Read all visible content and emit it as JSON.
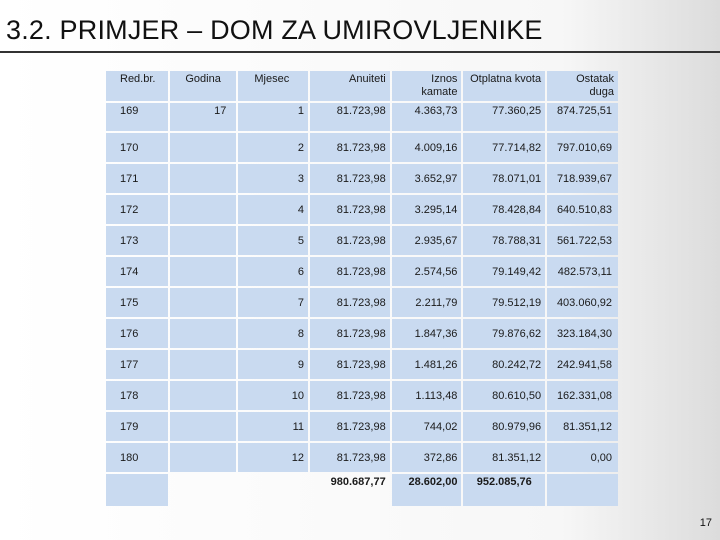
{
  "slide": {
    "title": "3.2. PRIMJER – DOM ZA UMIROVLJENIKE",
    "page_number": "17"
  },
  "table": {
    "headers": {
      "red_br": "Red.br.",
      "godina": "Godina",
      "mjesec": "Mjesec",
      "anuiteti": "Anuiteti",
      "iznos_kamate": "Iznos kamate",
      "otplatna_kvota": "Otplatna kvota",
      "ostatak_duga": "Ostatak duga"
    },
    "rows": [
      {
        "red_br": "169",
        "godina": "17",
        "mjesec": "1",
        "anuitet": "81.723,98",
        "kamate": "4.363,73",
        "kvota": "77.360,25",
        "ostatak": "874.725,51"
      },
      {
        "red_br": "170",
        "godina": "",
        "mjesec": "2",
        "anuitet": "81.723,98",
        "kamate": "4.009,16",
        "kvota": "77.714,82",
        "ostatak": "797.010,69"
      },
      {
        "red_br": "171",
        "godina": "",
        "mjesec": "3",
        "anuitet": "81.723,98",
        "kamate": "3.652,97",
        "kvota": "78.071,01",
        "ostatak": "718.939,67"
      },
      {
        "red_br": "172",
        "godina": "",
        "mjesec": "4",
        "anuitet": "81.723,98",
        "kamate": "3.295,14",
        "kvota": "78.428,84",
        "ostatak": "640.510,83"
      },
      {
        "red_br": "173",
        "godina": "",
        "mjesec": "5",
        "anuitet": "81.723,98",
        "kamate": "2.935,67",
        "kvota": "78.788,31",
        "ostatak": "561.722,53"
      },
      {
        "red_br": "174",
        "godina": "",
        "mjesec": "6",
        "anuitet": "81.723,98",
        "kamate": "2.574,56",
        "kvota": "79.149,42",
        "ostatak": "482.573,11"
      },
      {
        "red_br": "175",
        "godina": "",
        "mjesec": "7",
        "anuitet": "81.723,98",
        "kamate": "2.211,79",
        "kvota": "79.512,19",
        "ostatak": "403.060,92"
      },
      {
        "red_br": "176",
        "godina": "",
        "mjesec": "8",
        "anuitet": "81.723,98",
        "kamate": "1.847,36",
        "kvota": "79.876,62",
        "ostatak": "323.184,30"
      },
      {
        "red_br": "177",
        "godina": "",
        "mjesec": "9",
        "anuitet": "81.723,98",
        "kamate": "1.481,26",
        "kvota": "80.242,72",
        "ostatak": "242.941,58"
      },
      {
        "red_br": "178",
        "godina": "",
        "mjesec": "10",
        "anuitet": "81.723,98",
        "kamate": "1.113,48",
        "kvota": "80.610,50",
        "ostatak": "162.331,08"
      },
      {
        "red_br": "179",
        "godina": "",
        "mjesec": "11",
        "anuitet": "81.723,98",
        "kamate": "744,02",
        "kvota": "80.979,96",
        "ostatak": "81.351,12"
      },
      {
        "red_br": "180",
        "godina": "",
        "mjesec": "12",
        "anuitet": "81.723,98",
        "kamate": "372,86",
        "kvota": "81.351,12",
        "ostatak": "0,00"
      }
    ],
    "totals": {
      "anuiteti": "980.687,77",
      "kamate": "28.602,00",
      "kvota": "952.085,76"
    }
  }
}
